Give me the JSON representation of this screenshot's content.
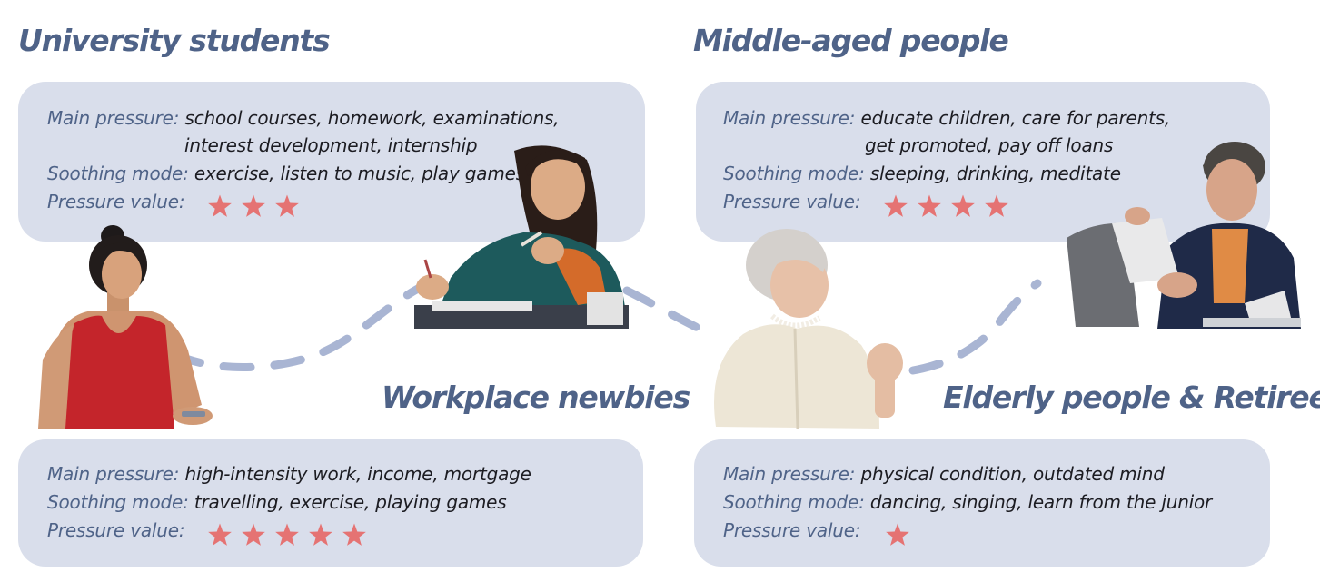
{
  "headings": {
    "university": "University students",
    "middle": "Middle-aged people",
    "workplace": "Workplace newbies",
    "elderly": "Elderly people & Retirees"
  },
  "labels": {
    "main_pressure": "Main pressure:",
    "soothing_mode": "Soothing mode:",
    "pressure_value": "Pressure value:"
  },
  "groups": {
    "university": {
      "main_pressure_1": "school courses, homework, examinations,",
      "main_pressure_2": "interest development, internship",
      "soothing_mode": "exercise, listen to music, play games",
      "stars": 3
    },
    "middle": {
      "main_pressure_1": "educate children, care for parents,",
      "main_pressure_2": "get promoted, pay off loans",
      "soothing_mode": "sleeping, drinking, meditate",
      "stars": 4
    },
    "workplace": {
      "main_pressure_1": "high-intensity work, income, mortgage",
      "soothing_mode": "travelling, exercise, playing games",
      "stars": 5
    },
    "elderly": {
      "main_pressure_1": "physical condition, outdated mind",
      "soothing_mode": "dancing, singing, learn from the junior",
      "stars": 1
    }
  },
  "colors": {
    "heading": "#4f6388",
    "card": "#d9deeb",
    "star": "#e57373",
    "path": "#a9b5d3"
  }
}
